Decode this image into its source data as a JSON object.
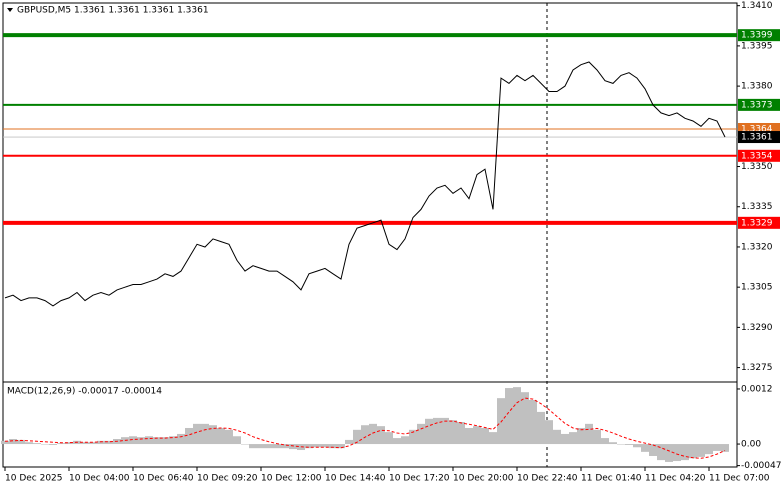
{
  "chart_data": [
    {
      "type": "line",
      "title": "GBPUSD,M5  1.3361 1.3361 1.3361 1.3361",
      "color": "#000000",
      "values": [
        1.3301,
        1.3302,
        1.33,
        1.3301,
        1.3301,
        1.33,
        1.3298,
        1.33,
        1.3301,
        1.3303,
        1.33,
        1.3302,
        1.3303,
        1.3302,
        1.3304,
        1.3305,
        1.3306,
        1.3306,
        1.3307,
        1.3308,
        1.331,
        1.3309,
        1.3311,
        1.3316,
        1.3321,
        1.332,
        1.3323,
        1.3322,
        1.3321,
        1.3315,
        1.3311,
        1.3313,
        1.3312,
        1.3311,
        1.3311,
        1.3309,
        1.3307,
        1.3304,
        1.331,
        1.3311,
        1.3312,
        1.331,
        1.3308,
        1.3321,
        1.3327,
        1.3328,
        1.3329,
        1.333,
        1.3321,
        1.3319,
        1.3323,
        1.3331,
        1.3334,
        1.3339,
        1.3342,
        1.3343,
        1.334,
        1.3342,
        1.3338,
        1.3347,
        1.3349,
        1.3334,
        1.3383,
        1.3381,
        1.3384,
        1.3382,
        1.3384,
        1.3381,
        1.3378,
        1.3378,
        1.338,
        1.3386,
        1.3388,
        1.3389,
        1.3386,
        1.3382,
        1.3381,
        1.3384,
        1.3385,
        1.3383,
        1.3379,
        1.3373,
        1.337,
        1.3369,
        1.337,
        1.3368,
        1.3367,
        1.3365,
        1.3368,
        1.3367,
        1.3361
      ],
      "xlim": [
        -0.25,
        91.5
      ],
      "ylim": [
        1.327,
        1.3411
      ],
      "yticks": [
        {
          "value": 1.341,
          "label": "1.3410"
        },
        1.3395,
        {
          "value": 1.338,
          "label": "1.3380"
        },
        {
          "value": 1.335,
          "label": "1.3350"
        },
        1.3335,
        {
          "value": 1.332,
          "label": "1.3320"
        },
        1.3305,
        {
          "value": 1.329,
          "label": "1.3290"
        },
        1.3275
      ],
      "levels": [
        {
          "value": 1.3399,
          "color": "#008000",
          "thick": true
        },
        {
          "value": 1.3373,
          "color": "#008000",
          "thick": false
        },
        {
          "value": 1.3364,
          "color": "#e07020",
          "thick": false
        },
        {
          "value": 1.3354,
          "color": "#ff0000",
          "thick": false
        },
        {
          "value": 1.3329,
          "color": "#ff0000",
          "thick": true
        }
      ],
      "last_price": 1.3361
    },
    {
      "type": "macd",
      "title": "MACD(12,26,9) -0.00017 -0.00014",
      "series": [
        {
          "color": "#c0c0c0",
          "values": [
            7e-05,
            0.00011,
            9e-05,
            4e-05,
            2e-05,
            0,
            -2e-05,
            2e-05,
            4e-05,
            7e-05,
            4e-05,
            4e-05,
            7e-05,
            7e-05,
            0.00011,
            0.00015,
            0.00017,
            0.00015,
            0.00017,
            0.00015,
            0.00015,
            0.00017,
            0.00022,
            0.00035,
            0.00044,
            0.00044,
            0.00041,
            0.00035,
            0.00031,
            0.00017,
            0,
            -9e-05,
            -9e-05,
            -9e-05,
            -9e-05,
            -9e-05,
            -0.00011,
            -0.00013,
            -9e-05,
            -7e-05,
            -7e-05,
            -9e-05,
            -9e-05,
            9e-05,
            0.00031,
            0.00041,
            0.00044,
            0.00039,
            0.00026,
            0.00013,
            0.00017,
            0.00031,
            0.00044,
            0.00055,
            0.00057,
            0.00057,
            0.00052,
            0.00048,
            0.00035,
            0.00039,
            0.00035,
            0.00026,
            0.001,
            0.00122,
            0.00124,
            0.00113,
            0.00096,
            0.0007,
            0.00052,
            0.00031,
            0.00022,
            0.00026,
            0.00035,
            0.00044,
            0.00031,
            0.00013,
            4e-05,
            0,
            -2e-05,
            -7e-05,
            -0.00017,
            -0.00026,
            -0.00035,
            -0.00039,
            -0.00037,
            -0.00035,
            -0.00031,
            -0.00028,
            -0.00022,
            -0.00015,
            -0.00017
          ]
        },
        {
          "color": "#ff0000",
          "dashed": true,
          "values": [
            6e-05,
            7e-05,
            8e-05,
            7e-05,
            6e-05,
            5e-05,
            4e-05,
            3e-05,
            3e-05,
            4e-05,
            4e-05,
            4e-05,
            5e-05,
            5e-05,
            6e-05,
            8e-05,
            0.0001,
            0.00011,
            0.00012,
            0.00013,
            0.00013,
            0.00014,
            0.00016,
            0.0002,
            0.00026,
            0.00031,
            0.00034,
            0.00035,
            0.00034,
            0.0003,
            0.00024,
            0.00016,
            0.0001,
            5e-05,
            1e-05,
            -2e-05,
            -4e-05,
            -6e-05,
            -7e-05,
            -7e-05,
            -7e-05,
            -7e-05,
            -8e-05,
            -4e-05,
            4e-05,
            0.00015,
            0.00024,
            0.0003,
            0.00029,
            0.00024,
            0.00022,
            0.00026,
            0.00033,
            0.0004,
            0.00046,
            0.0005,
            0.0005,
            0.00046,
            0.00043,
            0.0004,
            0.00036,
            0.00032,
            0.00048,
            0.0007,
            0.0009,
            0.001,
            0.00098,
            0.00088,
            0.00075,
            0.0006,
            0.00045,
            0.00035,
            0.00031,
            0.00032,
            0.00034,
            0.0003,
            0.00024,
            0.00017,
            0.00011,
            6e-05,
            2e-05,
            -2e-05,
            -8e-05,
            -0.00015,
            -0.00022,
            -0.00027,
            -0.0003,
            -0.00031,
            -0.00028,
            -0.00022,
            -0.00014
          ]
        }
      ],
      "xlim": [
        -0.25,
        91.5
      ],
      "ylim": [
        -0.0005,
        0.00133
      ],
      "yticks": [
        0.0012,
        {
          "value": 0,
          "label": "0.00"
        },
        -0.00047
      ],
      "xticks": [
        {
          "value": 0,
          "label": "10 Dec 2025"
        },
        {
          "value": 8,
          "label": "10 Dec 04:00"
        },
        {
          "value": 16,
          "label": "10 Dec 06:40"
        },
        {
          "value": 24,
          "label": "10 Dec 09:20"
        },
        {
          "value": 32,
          "label": "10 Dec 12:00"
        },
        {
          "value": 40,
          "label": "10 Dec 14:40"
        },
        {
          "value": 48,
          "label": "10 Dec 17:20"
        },
        {
          "value": 56,
          "label": "10 Dec 20:00"
        },
        {
          "value": 64,
          "label": "10 Dec 22:40"
        },
        {
          "value": 72,
          "label": "11 Dec 01:40"
        },
        {
          "value": 80,
          "label": "11 Dec 04:20"
        },
        {
          "value": 88,
          "label": "11 Dec 07:00"
        }
      ]
    }
  ]
}
